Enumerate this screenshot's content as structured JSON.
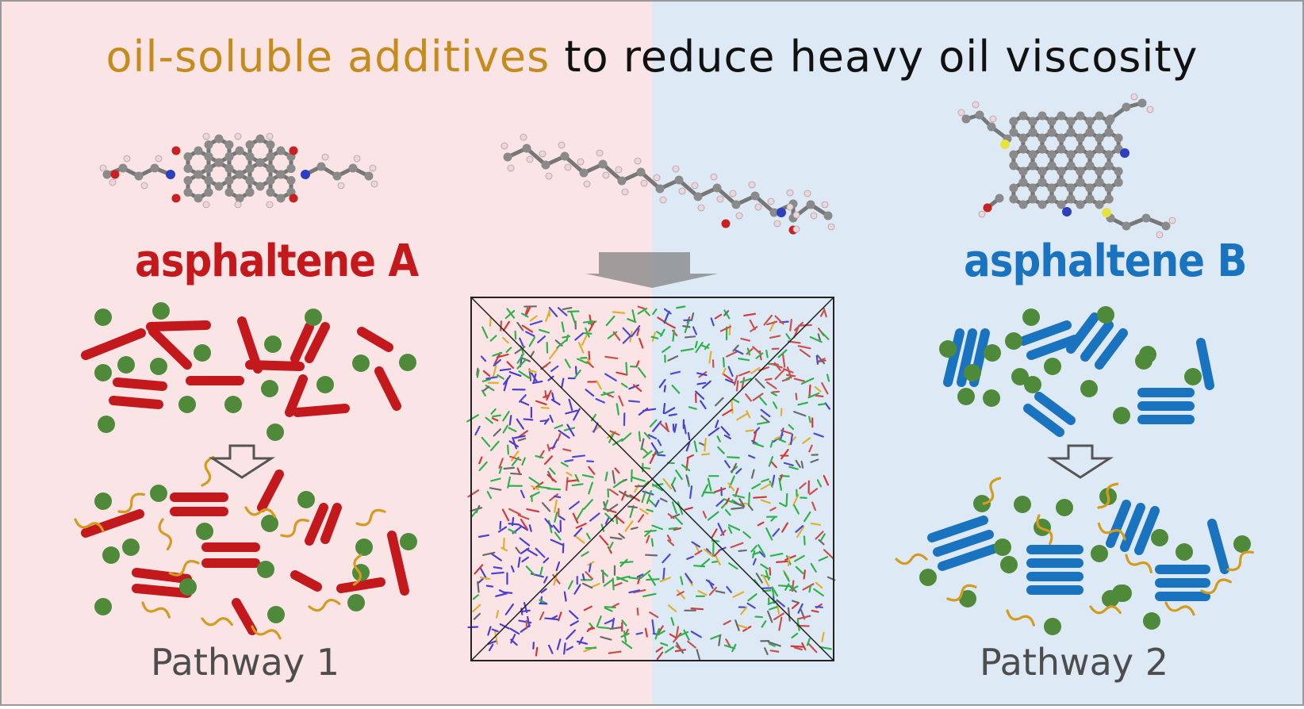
{
  "title": {
    "part_highlight": "oil-soluble additives",
    "part_rest": "to reduce heavy oil viscosity"
  },
  "left_panel": {
    "label": "asphaltene A",
    "pathway": "Pathway 1"
  },
  "right_panel": {
    "label": "asphaltene B",
    "pathway": "Pathway 2"
  },
  "colors": {
    "left_background": "#fbe4e6",
    "right_background": "#dde9f5",
    "asphaltene_a": "#c3181c",
    "asphaltene_b": "#1a73be",
    "resin_dot": "#4f8a3a",
    "additive_chain": "#d49b1d",
    "arrow": "#555555",
    "title_highlight": "#c58c1d",
    "title_rest": "#111111"
  }
}
